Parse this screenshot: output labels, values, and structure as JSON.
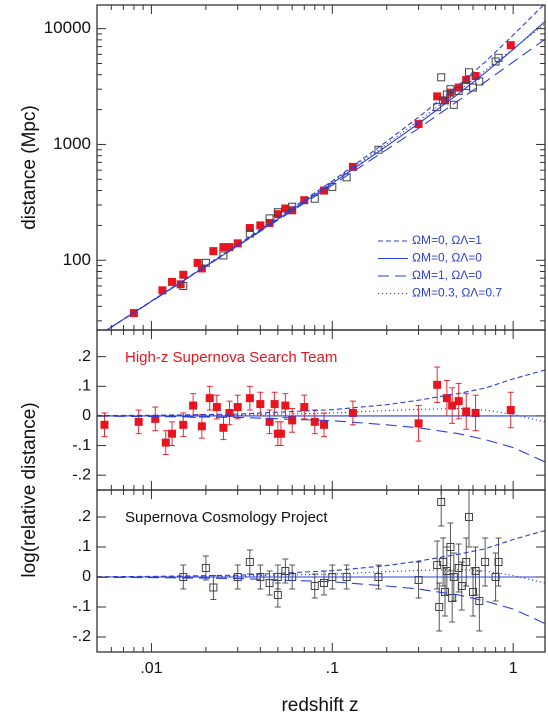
{
  "chart_data": [
    {
      "type": "scatter",
      "ylabel": "distance (Mpc)",
      "xscale": "log",
      "yscale": "log",
      "xlim": [
        0.005,
        1.5
      ],
      "ylim": [
        25,
        16000
      ],
      "yticks": [
        100,
        1000,
        10000
      ],
      "legend": "lower right",
      "series": [
        {
          "color": "#e8141e",
          "marker": "filled-square",
          "x": [
            0.008,
            0.0115,
            0.013,
            0.0145,
            0.015,
            0.018,
            0.019,
            0.022,
            0.025,
            0.027,
            0.03,
            0.035,
            0.04,
            0.045,
            0.05,
            0.055,
            0.06,
            0.07,
            0.09,
            0.13,
            0.3,
            0.38,
            0.42,
            0.45,
            0.5,
            0.55,
            0.62,
            0.97
          ],
          "values": [
            35,
            55,
            65,
            62,
            75,
            95,
            85,
            120,
            130,
            130,
            140,
            190,
            200,
            210,
            250,
            280,
            270,
            330,
            400,
            640,
            1500,
            2600,
            2400,
            2800,
            3100,
            3600,
            3900,
            7200
          ]
        },
        {
          "color": "#444444",
          "marker": "open-square",
          "x": [
            0.015,
            0.02,
            0.025,
            0.035,
            0.045,
            0.05,
            0.06,
            0.08,
            0.1,
            0.12,
            0.18,
            0.38,
            0.4,
            0.41,
            0.43,
            0.45,
            0.47,
            0.5,
            0.55,
            0.57,
            0.6,
            0.65,
            0.8,
            0.83
          ],
          "values": [
            60,
            95,
            110,
            170,
            230,
            260,
            290,
            340,
            430,
            520,
            900,
            2100,
            3800,
            2400,
            2700,
            3000,
            2200,
            2900,
            3200,
            4200,
            3100,
            3500,
            5200,
            5600
          ]
        },
        {
          "name": "ΩM=0, ΩΛ=1",
          "color": "#2b3fd6",
          "linestyle": "dashed",
          "x": [
            0.005,
            0.01,
            0.03,
            0.1,
            0.2,
            0.3,
            0.5,
            0.7,
            1,
            1.5
          ],
          "values": [
            22.1,
            44.4,
            136,
            484,
            1060,
            1720,
            3270,
            5150,
            8800,
            16500
          ]
        },
        {
          "name": "ΩM=0, ΩΛ=0",
          "color": "#2b3fd6",
          "linestyle": "solid",
          "x": [
            0.005,
            0.01,
            0.03,
            0.1,
            0.2,
            0.3,
            0.5,
            0.7,
            1,
            1.5
          ],
          "values": [
            22.05,
            44.2,
            134,
            462,
            968,
            1518,
            2750,
            4158,
            6600,
            11550
          ]
        },
        {
          "name": "ΩM=1, ΩΛ=0",
          "color": "#2b3fd6",
          "linestyle": "longdash",
          "x": [
            0.005,
            0.01,
            0.03,
            0.1,
            0.2,
            0.3,
            0.5,
            0.7,
            1,
            1.5
          ],
          "values": [
            22,
            44,
            133,
            445,
            903,
            1380,
            2400,
            3460,
            5160,
            8090
          ]
        },
        {
          "name": "ΩM=0.3, ΩΛ=0.7",
          "color": "#2b3fd6",
          "linestyle": "dotted",
          "x": [
            0.005,
            0.01,
            0.03,
            0.1,
            0.2,
            0.3,
            0.5,
            0.7,
            1,
            1.5
          ],
          "values": [
            22.1,
            44.4,
            135,
            473,
            1010,
            1600,
            2910,
            4350,
            6680,
            11000
          ]
        }
      ]
    },
    {
      "type": "scatter",
      "annotation": "High-z Supernova Search Team",
      "annotation_color": "#e8141e",
      "xscale": "log",
      "yscale": "linear",
      "xlim": [
        0.005,
        1.5
      ],
      "ylim": [
        -0.25,
        0.29
      ],
      "yticks": [
        {
          "value": 0.2,
          "label": ".2"
        },
        {
          "value": 0.1,
          "label": ".1"
        },
        0,
        {
          "value": -0.1,
          "label": "-.1"
        },
        {
          "value": -0.2,
          "label": "-.2"
        }
      ],
      "series": [
        {
          "color": "#e8141e",
          "marker": "filled-square",
          "x": [
            0.0055,
            0.0085,
            0.0105,
            0.012,
            0.013,
            0.015,
            0.017,
            0.019,
            0.021,
            0.023,
            0.025,
            0.027,
            0.03,
            0.035,
            0.04,
            0.045,
            0.048,
            0.05,
            0.052,
            0.055,
            0.06,
            0.07,
            0.08,
            0.09,
            0.13,
            0.3,
            0.38,
            0.43,
            0.46,
            0.5,
            0.55,
            0.62,
            0.97
          ],
          "values": [
            -0.03,
            -0.02,
            -0.01,
            -0.09,
            -0.06,
            -0.03,
            0.035,
            -0.035,
            0.06,
            0.03,
            -0.04,
            0.01,
            0.03,
            0.06,
            0.04,
            -0.02,
            0.04,
            -0.06,
            -0.06,
            0.035,
            -0.015,
            0.03,
            -0.02,
            -0.03,
            0.01,
            -0.025,
            0.105,
            0.06,
            0.035,
            0.05,
            0.015,
            0.01,
            0.02
          ],
          "errors": [
            0.04,
            0.04,
            0.04,
            0.04,
            0.04,
            0.04,
            0.04,
            0.04,
            0.04,
            0.04,
            0.04,
            0.04,
            0.04,
            0.04,
            0.04,
            0.04,
            0.04,
            0.04,
            0.04,
            0.04,
            0.04,
            0.04,
            0.04,
            0.04,
            0.04,
            0.06,
            0.06,
            0.06,
            0.06,
            0.06,
            0.06,
            0.06,
            0.06
          ]
        },
        {
          "color": "#2b3fd6",
          "linestyle": "dashed",
          "x": [
            0.005,
            0.01,
            0.03,
            0.1,
            0.2,
            0.3,
            0.5,
            0.7,
            1,
            1.5
          ],
          "values": [
            0.001,
            0.002,
            0.006,
            0.021,
            0.038,
            0.053,
            0.076,
            0.094,
            0.125,
            0.155
          ]
        },
        {
          "color": "#2b3fd6",
          "linestyle": "solid",
          "x": [
            0.005,
            1.5
          ],
          "values": [
            0,
            0
          ]
        },
        {
          "color": "#2b3fd6",
          "linestyle": "longdash",
          "x": [
            0.005,
            0.01,
            0.03,
            0.1,
            0.2,
            0.3,
            0.5,
            0.7,
            1,
            1.5
          ],
          "values": [
            -0.001,
            -0.002,
            -0.005,
            -0.016,
            -0.03,
            -0.04,
            -0.06,
            -0.08,
            -0.107,
            -0.155
          ]
        },
        {
          "color": "#2b3fd6",
          "linestyle": "dotted",
          "x": [
            0.005,
            0.03,
            0.1,
            0.2,
            0.3,
            0.5,
            0.7,
            1,
            1.5
          ],
          "values": [
            0,
            0.003,
            0.01,
            0.018,
            0.022,
            0.025,
            0.02,
            0.005,
            -0.02
          ]
        }
      ]
    },
    {
      "type": "scatter",
      "annotation": "Supernova Cosmology Project",
      "annotation_color": "#111111",
      "ylabel": "log(relative distance)",
      "xlabel": "redshift z",
      "xscale": "log",
      "yscale": "linear",
      "xlim": [
        0.005,
        1.5
      ],
      "ylim": [
        -0.25,
        0.29
      ],
      "xticks": [
        {
          "value": 0.01,
          "label": ".01"
        },
        {
          "value": 0.1,
          "label": ".1"
        },
        1
      ],
      "yticks": [
        {
          "value": 0.2,
          "label": ".2"
        },
        {
          "value": 0.1,
          "label": ".1"
        },
        0,
        {
          "value": -0.1,
          "label": "-.1"
        },
        {
          "value": -0.2,
          "label": "-.2"
        }
      ],
      "series": [
        {
          "color": "#444444",
          "marker": "open-square",
          "x": [
            0.015,
            0.02,
            0.022,
            0.03,
            0.035,
            0.04,
            0.045,
            0.05,
            0.05,
            0.055,
            0.06,
            0.08,
            0.09,
            0.1,
            0.12,
            0.18,
            0.3,
            0.38,
            0.39,
            0.4,
            0.41,
            0.42,
            0.43,
            0.45,
            0.46,
            0.47,
            0.5,
            0.52,
            0.55,
            0.57,
            0.6,
            0.62,
            0.65,
            0.7,
            0.8,
            0.83
          ],
          "values": [
            0.0,
            0.03,
            -0.035,
            0.0,
            0.05,
            0.0,
            -0.02,
            0.0,
            -0.06,
            0.02,
            0.0,
            -0.03,
            -0.02,
            0.0,
            0.0,
            0.0,
            -0.01,
            0.04,
            -0.1,
            0.25,
            0.05,
            -0.05,
            0.02,
            0.1,
            -0.07,
            0.0,
            0.03,
            -0.03,
            0.05,
            0.2,
            -0.05,
            0.02,
            -0.08,
            0.05,
            0.0,
            0.05
          ],
          "errors": [
            0.04,
            0.04,
            0.04,
            0.04,
            0.04,
            0.04,
            0.04,
            0.04,
            0.04,
            0.04,
            0.04,
            0.04,
            0.04,
            0.04,
            0.04,
            0.04,
            0.06,
            0.08,
            0.08,
            0.08,
            0.08,
            0.08,
            0.08,
            0.08,
            0.08,
            0.08,
            0.08,
            0.08,
            0.08,
            0.1,
            0.08,
            0.08,
            0.1,
            0.08,
            0.08,
            0.08
          ]
        },
        {
          "color": "#2b3fd6",
          "linestyle": "dashed",
          "x": [
            0.005,
            0.01,
            0.03,
            0.1,
            0.2,
            0.3,
            0.5,
            0.7,
            1,
            1.5
          ],
          "values": [
            0.001,
            0.002,
            0.006,
            0.021,
            0.038,
            0.053,
            0.076,
            0.094,
            0.125,
            0.155
          ]
        },
        {
          "color": "#2b3fd6",
          "linestyle": "solid",
          "x": [
            0.005,
            1.5
          ],
          "values": [
            0,
            0
          ]
        },
        {
          "color": "#2b3fd6",
          "linestyle": "longdash",
          "x": [
            0.005,
            0.01,
            0.03,
            0.1,
            0.2,
            0.3,
            0.5,
            0.7,
            1,
            1.5
          ],
          "values": [
            -0.001,
            -0.002,
            -0.005,
            -0.016,
            -0.03,
            -0.04,
            -0.06,
            -0.08,
            -0.107,
            -0.155
          ]
        },
        {
          "color": "#2b3fd6",
          "linestyle": "dotted",
          "x": [
            0.005,
            0.03,
            0.1,
            0.2,
            0.3,
            0.5,
            0.7,
            1,
            1.5
          ],
          "values": [
            0,
            0.003,
            0.01,
            0.018,
            0.022,
            0.025,
            0.02,
            0.005,
            -0.02
          ]
        }
      ]
    }
  ]
}
